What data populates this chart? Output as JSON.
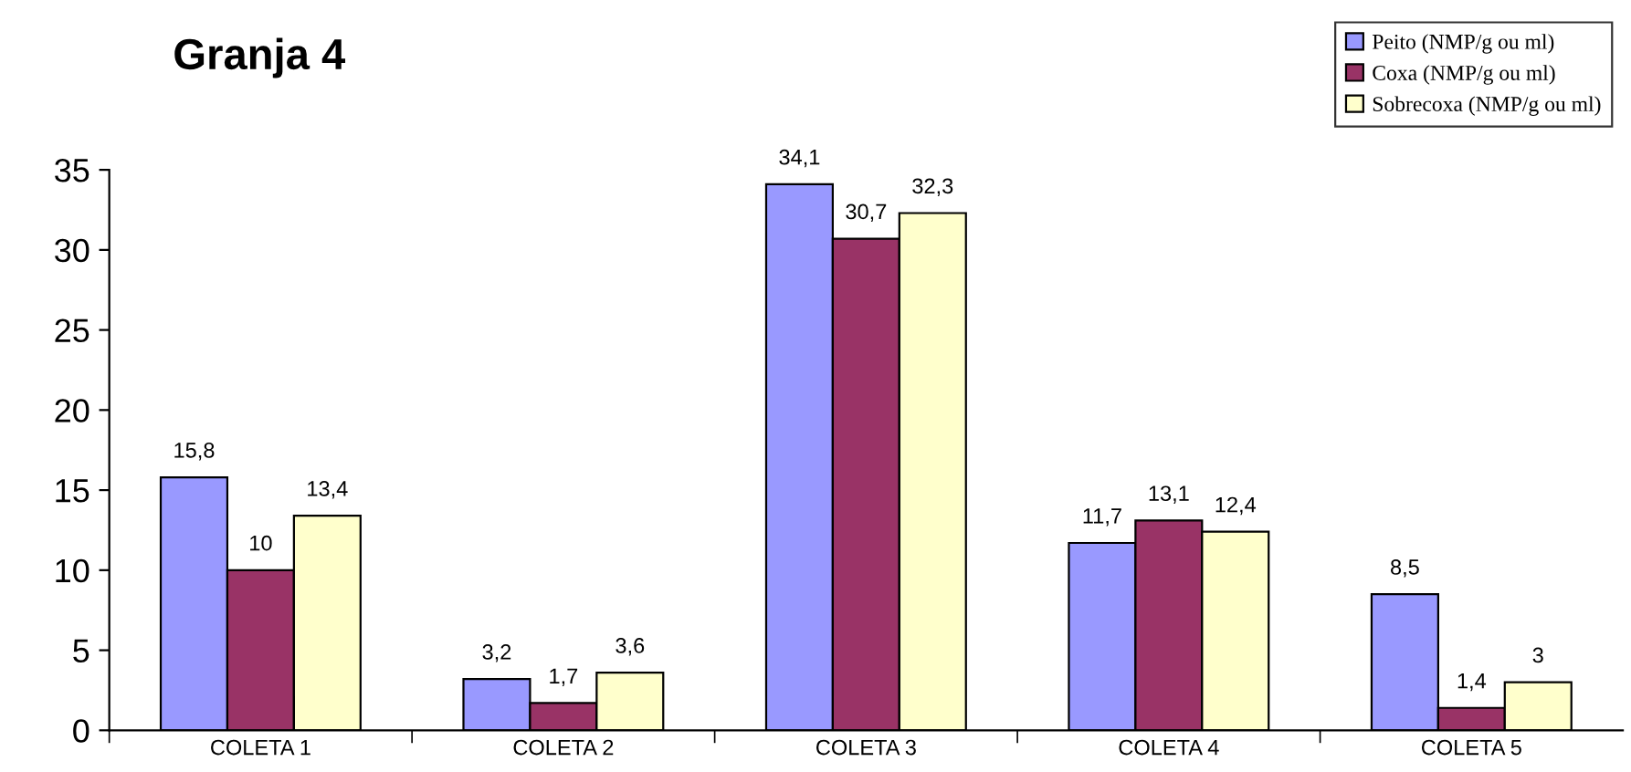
{
  "chart_data": {
    "type": "bar",
    "title": "Granja 4",
    "categories": [
      "COLETA 1",
      "COLETA 2",
      "COLETA 3",
      "COLETA 4",
      "COLETA 5"
    ],
    "series": [
      {
        "name": "Peito (NMP/g ou ml)",
        "color": "#9999ff",
        "values": [
          15.8,
          3.2,
          34.1,
          11.7,
          8.5
        ],
        "value_labels": [
          "15,8",
          "3,2",
          "34,1",
          "11,7",
          "8,5"
        ]
      },
      {
        "name": "Coxa (NMP/g ou ml)",
        "color": "#993366",
        "values": [
          10,
          1.7,
          30.7,
          13.1,
          1.4
        ],
        "value_labels": [
          "10",
          "1,7",
          "30,7",
          "13,1",
          "1,4"
        ]
      },
      {
        "name": "Sobrecoxa (NMP/g ou ml)",
        "color": "#ffffcc",
        "values": [
          13.4,
          3.6,
          32.3,
          12.4,
          3
        ],
        "value_labels": [
          "13,4",
          "3,6",
          "32,3",
          "12,4",
          "3"
        ]
      }
    ],
    "ylim": [
      0,
      35
    ],
    "yticks": [
      0,
      5,
      10,
      15,
      20,
      25,
      30,
      35
    ],
    "grid": false,
    "legend": "top right"
  }
}
